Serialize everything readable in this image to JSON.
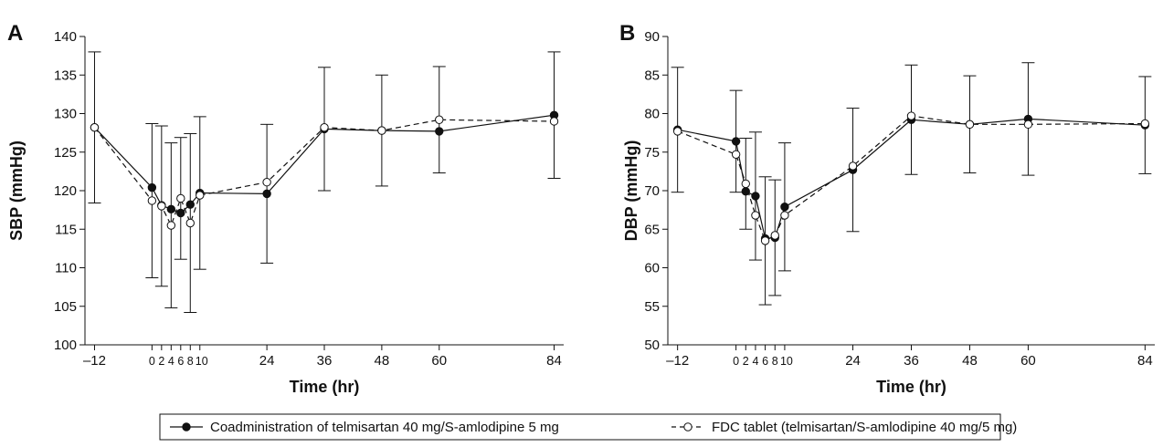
{
  "chart_data": [
    {
      "type": "line",
      "panel_label": "A",
      "xlabel": "Time (hr)",
      "ylabel": "SBP (mmHg)",
      "xlim": [
        -14,
        86
      ],
      "ylim": [
        100,
        140
      ],
      "xticks": [
        -12,
        0,
        2,
        4,
        6,
        8,
        10,
        24,
        36,
        48,
        60,
        84
      ],
      "xtick_labels": [
        "–12",
        "0",
        "2",
        "4",
        "6",
        "8",
        "10",
        "24",
        "36",
        "48",
        "60",
        "84"
      ],
      "yticks": [
        100,
        105,
        110,
        115,
        120,
        125,
        130,
        135,
        140
      ],
      "ytick_labels": [
        "100",
        "105",
        "110",
        "115",
        "120",
        "125",
        "130",
        "135",
        "140"
      ],
      "grid": false,
      "series": [
        {
          "name": "Coadministration of telmisartan 40 mg/S-amlodipine 5 mg",
          "marker": "filled-circle",
          "line": "solid",
          "x": [
            -12,
            0,
            2,
            4,
            6,
            8,
            10,
            24,
            36,
            48,
            60,
            84
          ],
          "y": [
            128.2,
            120.4,
            118.1,
            117.6,
            117.1,
            118.2,
            119.7,
            119.6,
            128.0,
            127.8,
            127.7,
            129.8
          ],
          "err": [
            9.8,
            0,
            0,
            0,
            0,
            0,
            9.9,
            9.0,
            8.0,
            0,
            0,
            8.2
          ]
        },
        {
          "name": "FDC tablet (telmisartan/S-amlodipine 40 mg/5 mg)",
          "marker": "open-circle",
          "line": "dashed",
          "x": [
            -12,
            0,
            2,
            4,
            6,
            8,
            10,
            24,
            36,
            48,
            60,
            84
          ],
          "y": [
            128.2,
            118.7,
            118.0,
            115.5,
            119.0,
            115.8,
            119.4,
            121.1,
            128.2,
            127.8,
            129.2,
            129.0
          ],
          "err": [
            0,
            10.0,
            10.4,
            10.7,
            7.9,
            11.6,
            0,
            0,
            0,
            7.2,
            6.9,
            0
          ]
        }
      ]
    },
    {
      "type": "line",
      "panel_label": "B",
      "xlabel": "Time (hr)",
      "ylabel": "DBP (mmHg)",
      "xlim": [
        -14,
        86
      ],
      "ylim": [
        50,
        90
      ],
      "xticks": [
        -12,
        0,
        2,
        4,
        6,
        8,
        10,
        24,
        36,
        48,
        60,
        84
      ],
      "xtick_labels": [
        "–12",
        "0",
        "2",
        "4",
        "6",
        "8",
        "10",
        "24",
        "36",
        "48",
        "60",
        "84"
      ],
      "yticks": [
        50,
        55,
        60,
        65,
        70,
        75,
        80,
        85,
        90
      ],
      "ytick_labels": [
        "50",
        "55",
        "60",
        "65",
        "70",
        "75",
        "80",
        "85",
        "90"
      ],
      "grid": false,
      "series": [
        {
          "name": "Coadministration of telmisartan 40 mg/S-amlodipine 5 mg",
          "marker": "filled-circle",
          "line": "solid",
          "x": [
            -12,
            0,
            2,
            4,
            6,
            8,
            10,
            24,
            36,
            48,
            60,
            84
          ],
          "y": [
            77.9,
            76.4,
            69.9,
            69.3,
            63.8,
            63.9,
            67.9,
            72.7,
            79.2,
            78.6,
            79.3,
            78.5
          ],
          "err": [
            8.1,
            6.6,
            0,
            8.3,
            0,
            7.5,
            8.3,
            8.0,
            7.1,
            0,
            7.3,
            6.3
          ]
        },
        {
          "name": "FDC tablet (telmisartan/S-amlodipine 40 mg/5 mg)",
          "marker": "open-circle",
          "line": "dashed",
          "x": [
            -12,
            0,
            2,
            4,
            6,
            8,
            10,
            24,
            36,
            48,
            60,
            84
          ],
          "y": [
            77.7,
            74.7,
            70.9,
            66.8,
            63.5,
            64.2,
            66.8,
            73.2,
            79.7,
            78.6,
            78.6,
            78.7
          ],
          "err": [
            0,
            0,
            5.9,
            0,
            8.3,
            0,
            0,
            0,
            0,
            6.3,
            0,
            0
          ]
        }
      ]
    }
  ],
  "legend": {
    "placement": "bottom-center",
    "items": [
      {
        "label": "Coadministration of telmisartan 40 mg/S-amlodipine 5 mg",
        "marker": "filled-circle",
        "line": "solid"
      },
      {
        "label": "FDC tablet (telmisartan/S-amlodipine 40 mg/5 mg)",
        "marker": "open-circle",
        "line": "dashed"
      }
    ]
  },
  "colors": {
    "ink": "#111111",
    "background": "#ffffff"
  }
}
